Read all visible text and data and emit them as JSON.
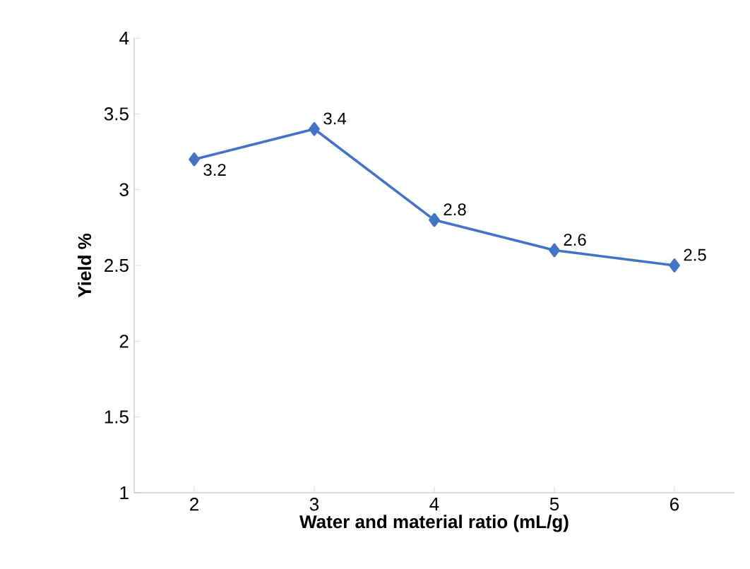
{
  "chart_data": {
    "type": "line",
    "xlabel": "Water and material ratio (mL/g)",
    "ylabel": "Yield %",
    "x": [
      2,
      3,
      4,
      5,
      6
    ],
    "series": [
      {
        "color": "#4472c4",
        "values": [
          3.2,
          3.4,
          2.8,
          2.6,
          2.5
        ]
      }
    ],
    "xlim": [
      1.5,
      6.5
    ],
    "xticks": [
      2,
      3,
      4,
      5,
      6
    ],
    "ylim": [
      1,
      4
    ],
    "yticks": [
      1,
      1.5,
      2,
      2.5,
      3,
      3.5,
      4
    ],
    "marker": "diamond",
    "line_style": "solid",
    "data_labels": true
  }
}
